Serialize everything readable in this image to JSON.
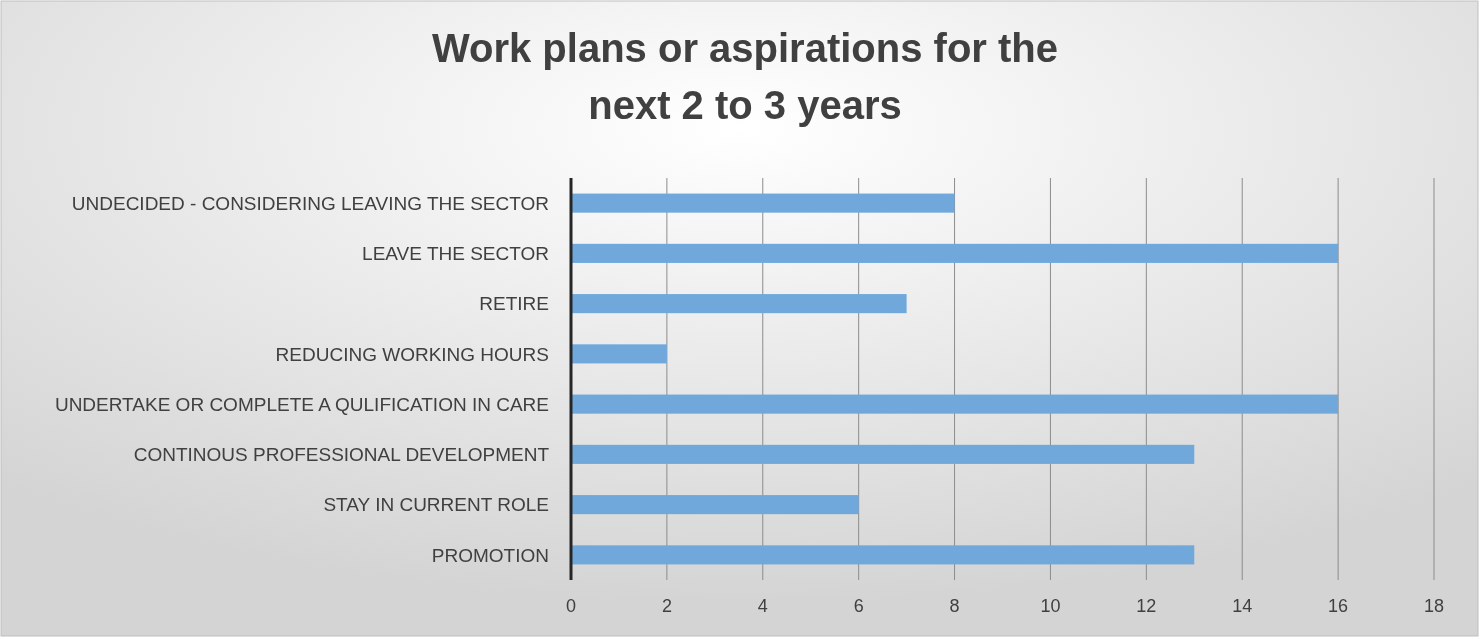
{
  "chart_data": {
    "type": "bar",
    "orientation": "horizontal",
    "title": "Work plans or aspirations for the\nnext 2 to 3 years",
    "categories": [
      "UNDECIDED - CONSIDERING LEAVING THE SECTOR",
      "LEAVE THE SECTOR",
      "RETIRE",
      "REDUCING WORKING HOURS",
      "UNDERTAKE OR COMPLETE A QULIFICATION IN CARE",
      "CONTINOUS PROFESSIONAL DEVELOPMENT",
      "STAY IN CURRENT ROLE",
      "PROMOTION"
    ],
    "values": [
      8,
      16,
      7,
      2,
      16,
      13,
      6,
      13
    ],
    "color": "#70a8dc",
    "xlim": [
      0,
      18
    ],
    "xticks": [
      0,
      2,
      4,
      6,
      8,
      10,
      12,
      14,
      16,
      18
    ],
    "grid": "x"
  }
}
